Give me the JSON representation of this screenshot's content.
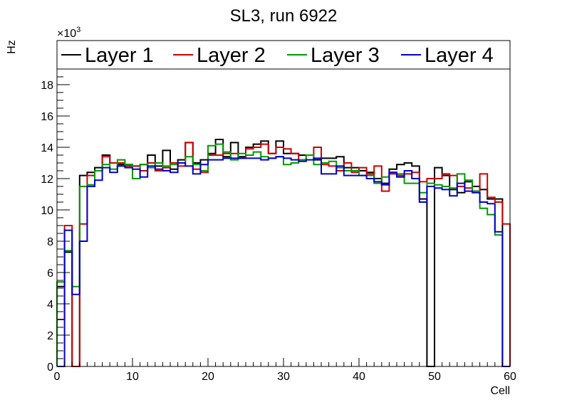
{
  "chart_data": {
    "type": "histogram-step",
    "title": "SL3, run 6922",
    "xlabel": "Cell",
    "ylabel": "Hz",
    "y_exponent_label": "×10",
    "y_exponent": "3",
    "xlim": [
      0,
      60
    ],
    "ylim": [
      0,
      19
    ],
    "x_ticks": [
      0,
      10,
      20,
      30,
      40,
      50,
      60
    ],
    "y_ticks": [
      0,
      2,
      4,
      6,
      8,
      10,
      12,
      14,
      16,
      18
    ],
    "x_minor_step": 1,
    "y_minor_step": 0.5,
    "grid": false,
    "legend_position": "top",
    "bin_edges_start": 0,
    "bin_width": 1,
    "units_note": "values in thousands of Hz",
    "series": [
      {
        "name": "Layer 1",
        "color": "#000000",
        "values": [
          5.1,
          7.3,
          0,
          12.2,
          12.4,
          12.7,
          13.5,
          13.0,
          12.9,
          12.9,
          12.8,
          12.9,
          13.5,
          12.8,
          13.8,
          12.6,
          13.2,
          14.3,
          13.0,
          13.2,
          13.6,
          14.5,
          13.4,
          14.3,
          13.4,
          14.0,
          14.2,
          14.4,
          13.6,
          14.4,
          13.6,
          13.6,
          13.5,
          13.5,
          13.2,
          13.3,
          13.3,
          13.4,
          12.7,
          12.7,
          12.5,
          12.4,
          12.0,
          11.7,
          12.6,
          12.9,
          13.0,
          12.8,
          10.7,
          0,
          12.7,
          12.2,
          11.3,
          11.1,
          11.8,
          11.5,
          11.3,
          10.7,
          10.7,
          0
        ]
      },
      {
        "name": "Layer 2",
        "color": "#cc0000",
        "values": [
          3.0,
          9.0,
          0,
          9.1,
          12.2,
          12.5,
          13.4,
          13.0,
          13.0,
          12.8,
          12.8,
          12.5,
          13.0,
          12.5,
          12.7,
          13.0,
          12.8,
          14.3,
          12.6,
          12.4,
          13.5,
          13.5,
          13.6,
          13.6,
          13.3,
          13.9,
          14.0,
          14.2,
          13.6,
          14.0,
          13.9,
          13.6,
          13.2,
          13.5,
          14.0,
          12.9,
          12.8,
          12.5,
          13.0,
          12.4,
          12.7,
          12.3,
          12.8,
          11.2,
          12.3,
          12.2,
          12.3,
          12.4,
          11.8,
          12.0,
          12.0,
          12.3,
          12.2,
          11.5,
          11.4,
          11.2,
          12.3,
          10.8,
          10.5,
          9.1
        ]
      },
      {
        "name": "Layer 3",
        "color": "#009900",
        "values": [
          5.4,
          7.4,
          5.1,
          11.5,
          11.6,
          12.5,
          12.9,
          12.6,
          13.2,
          12.9,
          12.0,
          12.9,
          12.7,
          13.0,
          12.8,
          12.9,
          13.0,
          13.4,
          12.9,
          12.5,
          14.1,
          14.2,
          13.7,
          13.2,
          13.6,
          13.5,
          13.7,
          13.4,
          13.3,
          13.4,
          12.9,
          13.0,
          13.2,
          13.5,
          12.9,
          13.0,
          13.1,
          12.7,
          12.5,
          12.5,
          12.2,
          12.2,
          11.7,
          12.1,
          12.4,
          12.3,
          11.7,
          11.7,
          11.1,
          11.7,
          11.6,
          11.5,
          11.4,
          12.3,
          11.9,
          11.2,
          10.1,
          9.7,
          8.4,
          0
        ]
      },
      {
        "name": "Layer 4",
        "color": "#0000cc",
        "values": [
          0,
          8.7,
          4.6,
          8.0,
          11.5,
          11.9,
          12.7,
          12.4,
          12.8,
          12.7,
          12.6,
          12.1,
          12.8,
          12.6,
          12.5,
          12.4,
          13.0,
          12.8,
          12.3,
          12.9,
          13.2,
          13.2,
          13.3,
          13.3,
          13.3,
          13.3,
          13.3,
          13.2,
          13.3,
          13.4,
          13.3,
          13.2,
          13.1,
          13.2,
          13.3,
          12.3,
          12.3,
          12.8,
          12.2,
          12.2,
          12.2,
          12.0,
          11.8,
          11.6,
          12.4,
          12.1,
          12.5,
          12.0,
          10.5,
          11.5,
          11.4,
          11.3,
          10.9,
          11.7,
          11.2,
          11.1,
          10.5,
          10.4,
          8.6,
          0
        ]
      }
    ]
  }
}
